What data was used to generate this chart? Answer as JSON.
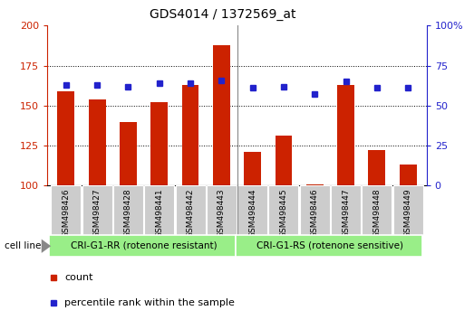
{
  "title": "GDS4014 / 1372569_at",
  "samples": [
    "GSM498426",
    "GSM498427",
    "GSM498428",
    "GSM498441",
    "GSM498442",
    "GSM498443",
    "GSM498444",
    "GSM498445",
    "GSM498446",
    "GSM498447",
    "GSM498448",
    "GSM498449"
  ],
  "counts": [
    159,
    154,
    140,
    152,
    163,
    188,
    121,
    131,
    101,
    163,
    122,
    113
  ],
  "percentile_ranks": [
    63,
    63,
    62,
    64,
    64,
    66,
    61,
    62,
    57,
    65,
    61,
    61
  ],
  "ylim_left": [
    100,
    200
  ],
  "ylim_right": [
    0,
    100
  ],
  "yticks_left": [
    100,
    125,
    150,
    175,
    200
  ],
  "yticks_right": [
    0,
    25,
    50,
    75,
    100
  ],
  "group1_label": "CRI-G1-RR (rotenone resistant)",
  "group2_label": "CRI-G1-RS (rotenone sensitive)",
  "group1_count": 6,
  "group2_count": 6,
  "bar_color": "#cc2200",
  "dot_color": "#2222cc",
  "group_color": "#99ee88",
  "tick_bg_color": "#cccccc",
  "cell_line_label": "cell line",
  "legend_count_label": "count",
  "legend_pct_label": "percentile rank within the sample",
  "title_fontsize": 10,
  "axis_fontsize": 8,
  "label_fontsize": 8,
  "legend_fontsize": 8
}
